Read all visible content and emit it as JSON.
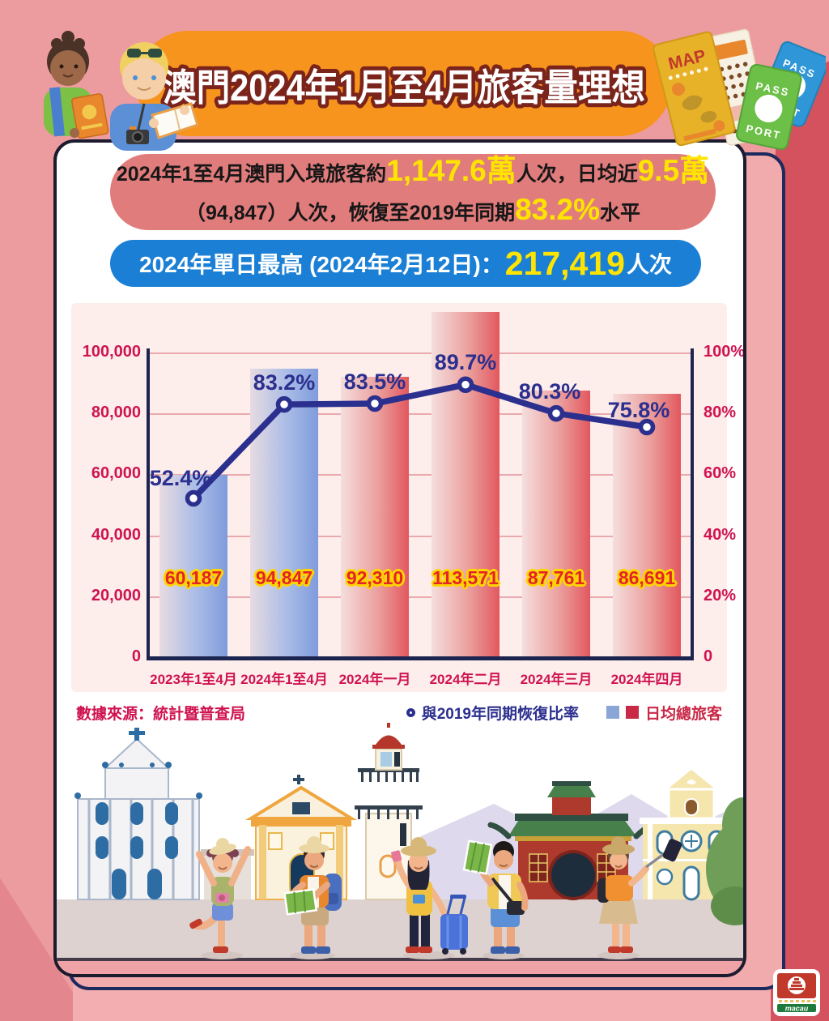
{
  "title": "澳門2024年1月至4月旅客量理想",
  "summary": {
    "l1a": "2024年1至4月澳門入境旅客約",
    "l1n1": "1,147.6萬",
    "l1b": "人次，日均近",
    "l1n2": "9.5萬",
    "l2a": "（94,847）人次，恢復至2019年同期",
    "l2n1": "83.2%",
    "l2b": "水平"
  },
  "record": {
    "prefix": "2024年單日最高 (2024年2月12日)：",
    "number": "217,419",
    "suffix": "人次"
  },
  "chart_data": {
    "type": "bar",
    "categories": [
      "2023年1至4月",
      "2024年1至4月",
      "2024年一月",
      "2024年二月",
      "2024年三月",
      "2024年四月"
    ],
    "series": [
      {
        "name": "日均總旅客",
        "type": "bar",
        "values": [
          60187,
          94847,
          92310,
          113571,
          87761,
          86691
        ],
        "labels": [
          "60,187",
          "94,847",
          "92,310",
          "113,571",
          "87,761",
          "86,691"
        ],
        "palette": [
          "blue",
          "blue",
          "red",
          "red",
          "red",
          "red"
        ]
      },
      {
        "name": "與2019年同期恢復比率",
        "type": "line",
        "values": [
          52.4,
          83.2,
          83.5,
          89.7,
          80.3,
          75.8
        ],
        "labels": [
          "52.4%",
          "83.2%",
          "83.5%",
          "89.7%",
          "80.3%",
          "75.8%"
        ]
      }
    ],
    "y_left": {
      "ticks": [
        "100,000",
        "80,000",
        "60,000",
        "40,000",
        "20,000",
        "0"
      ],
      "min": 0,
      "max": 100000
    },
    "y_right": {
      "ticks": [
        "100%",
        "80%",
        "60%",
        "40%",
        "20%",
        "0"
      ],
      "min": 0,
      "max": 100
    },
    "grid": true,
    "legend_position": "bottom"
  },
  "source_label": "數據來源：統計暨普查局",
  "legend": {
    "line": "與2019年同期恢復比率",
    "bars": "日均總旅客"
  },
  "decor": {
    "map": "MAP",
    "pass": "PASS",
    "port": "PORT",
    "logo": "macau"
  },
  "colors": {
    "banner_orange": "#f7941d",
    "pill_red": "#e17c7c",
    "pill_blue": "#1b80d5",
    "highlight_yellow": "#ffe400",
    "panel_pink": "#fdeeec",
    "grid_pink": "#eaa9ad",
    "axis_navy": "#1b2550",
    "line_navy": "#2b2f8e",
    "tick_crimson": "#cf1350",
    "bar_value_red": "#e3242b",
    "bar_value_outline": "#ffd500",
    "bar_blue_gradient": [
      "#e7dbe2",
      "#7f9bdb"
    ],
    "bar_red_gradient": [
      "#f4dedd",
      "#e2585e"
    ],
    "legend_blue": "#8aa5d6",
    "legend_red": "#c92946",
    "bg_pink": "#ec9b9e",
    "bg_dark_red": "#d4515e",
    "logo_red": "#c0392b",
    "logo_green": "#1e7a3c"
  }
}
